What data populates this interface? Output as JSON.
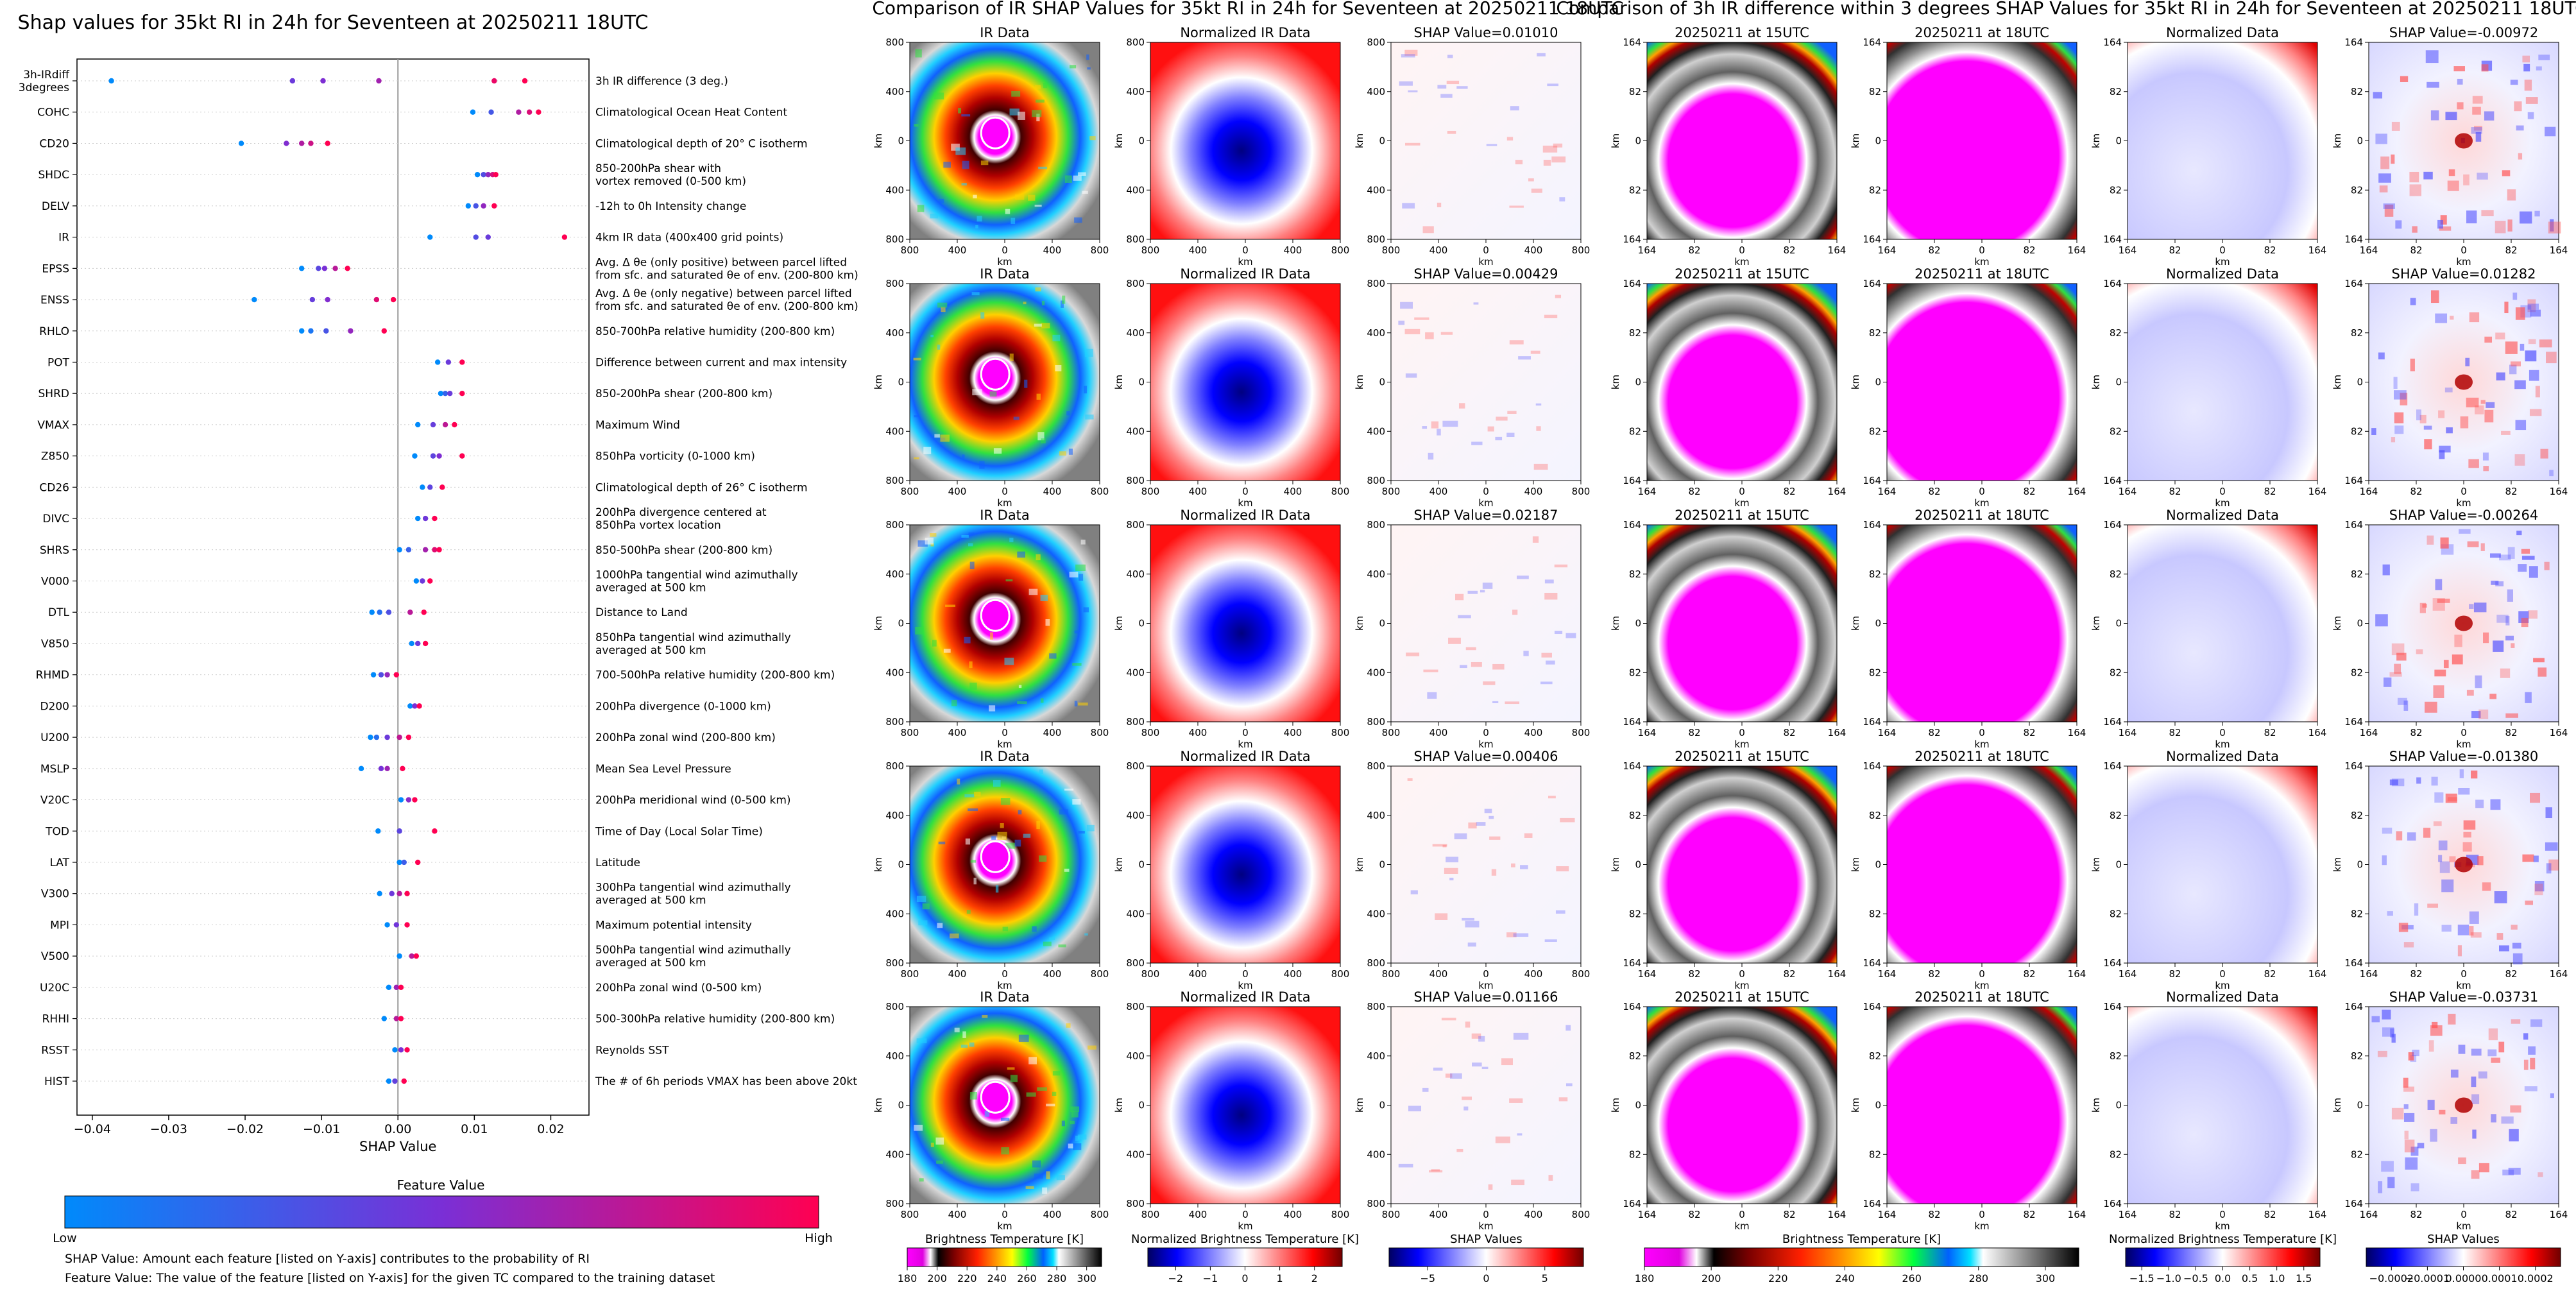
{
  "shap_panel": {
    "title": "Shap values for 35kt RI in 24h for Seventeen at 20250211 18UTC",
    "xlabel": "SHAP Value",
    "colorbar_title": "Feature Value",
    "colorbar_low": "Low",
    "colorbar_high": "High",
    "note1": "SHAP Value: Amount each feature [listed on Y-axis] contributes to the probability of RI",
    "note2": "Feature Value: The value of the feature [listed on Y-axis] for the given TC compared to the training dataset"
  },
  "chart_data": [
    {
      "type": "scatter",
      "title": "Shap values for 35kt RI in 24h for Seventeen at 20250211 18UTC",
      "xlabel": "SHAP Value",
      "xlim": [
        -0.042,
        0.025
      ],
      "xticks": [
        -0.04,
        -0.03,
        -0.02,
        -0.01,
        0.0,
        0.01,
        0.02
      ],
      "xtick_labels": [
        "−0.04",
        "−0.03",
        "−0.02",
        "−0.01",
        "0.00",
        "0.01",
        "0.02"
      ],
      "grid": false,
      "colorscale": [
        "#008afb",
        "#ff0052"
      ],
      "features": [
        {
          "code": "3h-IRdiff\n3degrees",
          "desc": "3h IR difference (3 deg.)",
          "values": [
            -0.0375,
            -0.0138,
            -0.0098,
            -0.0025,
            0.0126,
            0.0166
          ]
        },
        {
          "code": "COHC",
          "desc": "Climatological Ocean Heat Content",
          "values": [
            0.0098,
            0.0122,
            0.0158,
            0.0172,
            0.0184
          ]
        },
        {
          "code": "CD20",
          "desc": "Climatological depth of 20° C isotherm",
          "values": [
            -0.0205,
            -0.0146,
            -0.0126,
            -0.0114,
            -0.0092
          ]
        },
        {
          "code": "SHDC",
          "desc": "850-200hPa shear with\nvortex removed (0-500 km)",
          "values": [
            0.0104,
            0.0112,
            0.0118,
            0.0124,
            0.0128
          ]
        },
        {
          "code": "DELV",
          "desc": "-12h to 0h Intensity change",
          "values": [
            0.0092,
            0.0102,
            0.0112,
            0.0126
          ]
        },
        {
          "code": "IR",
          "desc": "4km IR data (400x400 grid points)",
          "values": [
            0.0042,
            0.0102,
            0.0118,
            0.0218
          ]
        },
        {
          "code": "EPSS",
          "desc": "Avg. Δ θe (only positive) between parcel lifted\nfrom sfc. and saturated θe of env. (200-800 km)",
          "values": [
            -0.0126,
            -0.0104,
            -0.0096,
            -0.0082,
            -0.0066
          ]
        },
        {
          "code": "ENSS",
          "desc": "Avg. Δ θe (only negative) between parcel lifted\nfrom sfc. and saturated θe of env. (200-800 km)",
          "values": [
            -0.0188,
            -0.0112,
            -0.0092,
            -0.0028,
            -0.0006
          ]
        },
        {
          "code": "RHLO",
          "desc": "850-700hPa relative humidity (200-800 km)",
          "values": [
            -0.0126,
            -0.0114,
            -0.0094,
            -0.0062,
            -0.0018
          ]
        },
        {
          "code": "POT",
          "desc": "Difference between current and max intensity",
          "values": [
            0.0052,
            0.0066,
            0.0084
          ]
        },
        {
          "code": "SHRD",
          "desc": "850-200hPa shear (200-800 km)",
          "values": [
            0.0056,
            0.0062,
            0.0068,
            0.0084
          ]
        },
        {
          "code": "VMAX",
          "desc": "Maximum Wind",
          "values": [
            0.0026,
            0.0046,
            0.0062,
            0.0074
          ]
        },
        {
          "code": "Z850",
          "desc": "850hPa vorticity (0-1000 km)",
          "values": [
            0.0022,
            0.0046,
            0.0054,
            0.0084
          ]
        },
        {
          "code": "CD26",
          "desc": "Climatological depth of 26° C isotherm",
          "values": [
            0.0032,
            0.0042,
            0.0058
          ]
        },
        {
          "code": "DIVC",
          "desc": "200hPa divergence centered at\n850hPa vortex location",
          "values": [
            0.0026,
            0.0036,
            0.0048
          ]
        },
        {
          "code": "SHRS",
          "desc": "850-500hPa shear (200-800 km)",
          "values": [
            0.0002,
            0.0014,
            0.0036,
            0.0048,
            0.0054
          ]
        },
        {
          "code": "V000",
          "desc": "1000hPa tangential wind azimuthally\naveraged at 500 km",
          "values": [
            0.0024,
            0.0032,
            0.0042
          ]
        },
        {
          "code": "DTL",
          "desc": "Distance to Land",
          "values": [
            -0.0034,
            -0.0024,
            -0.0012,
            0.0016,
            0.0034
          ]
        },
        {
          "code": "V850",
          "desc": "850hPa tangential wind azimuthally\naveraged at 500 km",
          "values": [
            0.0018,
            0.0026,
            0.0036
          ]
        },
        {
          "code": "RHMD",
          "desc": "700-500hPa relative humidity (200-800 km)",
          "values": [
            -0.0032,
            -0.0022,
            -0.0014,
            -0.0002
          ]
        },
        {
          "code": "D200",
          "desc": "200hPa divergence (0-1000 km)",
          "values": [
            0.0016,
            0.0022,
            0.0028
          ]
        },
        {
          "code": "U200",
          "desc": "200hPa zonal wind (200-800 km)",
          "values": [
            -0.0036,
            -0.0028,
            -0.0014,
            0.0002,
            0.0014
          ]
        },
        {
          "code": "MSLP",
          "desc": "Mean Sea Level Pressure",
          "values": [
            -0.0048,
            -0.0022,
            -0.0014,
            0.0006
          ]
        },
        {
          "code": "V20C",
          "desc": "200hPa meridional wind (0-500 km)",
          "values": [
            0.0004,
            0.0014,
            0.0022
          ]
        },
        {
          "code": "TOD",
          "desc": "Time of Day (Local Solar Time)",
          "values": [
            -0.0026,
            0.0002,
            0.0048
          ]
        },
        {
          "code": "LAT",
          "desc": "Latitude",
          "values": [
            0.0002,
            0.0008,
            0.0026
          ]
        },
        {
          "code": "V300",
          "desc": "300hPa tangential wind azimuthally\naveraged at 500 km",
          "values": [
            -0.0024,
            -0.0008,
            0.0002,
            0.0012
          ]
        },
        {
          "code": "MPI",
          "desc": "Maximum potential intensity",
          "values": [
            -0.0014,
            -0.0002,
            0.0012
          ]
        },
        {
          "code": "V500",
          "desc": "500hPa tangential wind azimuthally\naveraged at 500 km",
          "values": [
            0.0002,
            0.0018,
            0.0024
          ]
        },
        {
          "code": "U20C",
          "desc": "200hPa zonal wind (0-500 km)",
          "values": [
            -0.0012,
            -0.0002,
            0.0004
          ]
        },
        {
          "code": "RHHI",
          "desc": "500-300hPa relative humidity (200-800 km)",
          "values": [
            -0.0018,
            -0.0002,
            0.0004
          ]
        },
        {
          "code": "RSST",
          "desc": "Reynolds SST",
          "values": [
            -0.0004,
            0.0004,
            0.0012
          ]
        },
        {
          "code": "HIST",
          "desc": "The # of 6h periods VMAX has been above 20kt",
          "values": [
            -0.0012,
            -0.0004,
            0.0008
          ]
        }
      ]
    },
    {
      "type": "heatmap",
      "title": "Comparison of IR SHAP Values for 35kt RI in 24h for Seventeen at 20250211 18UTC",
      "columns": [
        "IR Data",
        "Normalized IR Data"
      ],
      "shap_titles": [
        "SHAP Value=0.01010",
        "SHAP Value=0.00429",
        "SHAP Value=0.02187",
        "SHAP Value=0.00406",
        "SHAP Value=0.01166"
      ],
      "xlabel": "km",
      "ylabel": "km",
      "ticks": [
        "800",
        "400",
        "0",
        "400",
        "800"
      ]
    },
    {
      "type": "heatmap",
      "title": "Comparison of 3h IR difference within 3 degrees SHAP Values for 35kt RI in 24h for Seventeen at 20250211 18UTC",
      "columns": [
        "20250211 at 15UTC",
        "20250211 at 18UTC",
        "Normalized Data"
      ],
      "shap_titles": [
        "SHAP Value=-0.00972",
        "SHAP Value=0.01282",
        "SHAP Value=-0.00264",
        "SHAP Value=-0.01380",
        "SHAP Value=-0.03731"
      ],
      "xlabel": "km",
      "ylabel": "km",
      "ticks": [
        "164",
        "82",
        "0",
        "82",
        "164"
      ]
    }
  ],
  "colorbars": {
    "bt": {
      "title": "Brightness Temperature [K]",
      "ticks": [
        "180",
        "200",
        "220",
        "240",
        "260",
        "280",
        "300"
      ],
      "lim": [
        180,
        310
      ]
    },
    "bt2": {
      "title": "Brightness Temperature [K]",
      "ticks": [
        "180",
        "200",
        "220",
        "240",
        "260",
        "280",
        "300"
      ],
      "lim": [
        180,
        310
      ]
    },
    "norm1": {
      "title": "Normalized Brightness Temperature [K]",
      "ticks": [
        "−2",
        "−1",
        "0",
        "1",
        "2"
      ],
      "lim": [
        -2.8,
        2.8
      ]
    },
    "norm2": {
      "title": "Normalized Brightness Temperature [K]",
      "ticks": [
        "−1.5",
        "−1.0",
        "−0.5",
        "0.0",
        "0.5",
        "1.0",
        "1.5"
      ],
      "lim": [
        -1.8,
        1.8
      ]
    },
    "shap1": {
      "title": "SHAP Values",
      "ticks": [
        "−5",
        "0",
        "5"
      ],
      "lim": [
        -8.3,
        8.3
      ],
      "exponent": "1e−5"
    },
    "shap2": {
      "title": "SHAP Values",
      "ticks": [
        "−0.0002",
        "−0.0001",
        "0.0000",
        "0.0001",
        "0.0002"
      ],
      "lim": [
        -0.00027,
        0.00027
      ]
    }
  }
}
